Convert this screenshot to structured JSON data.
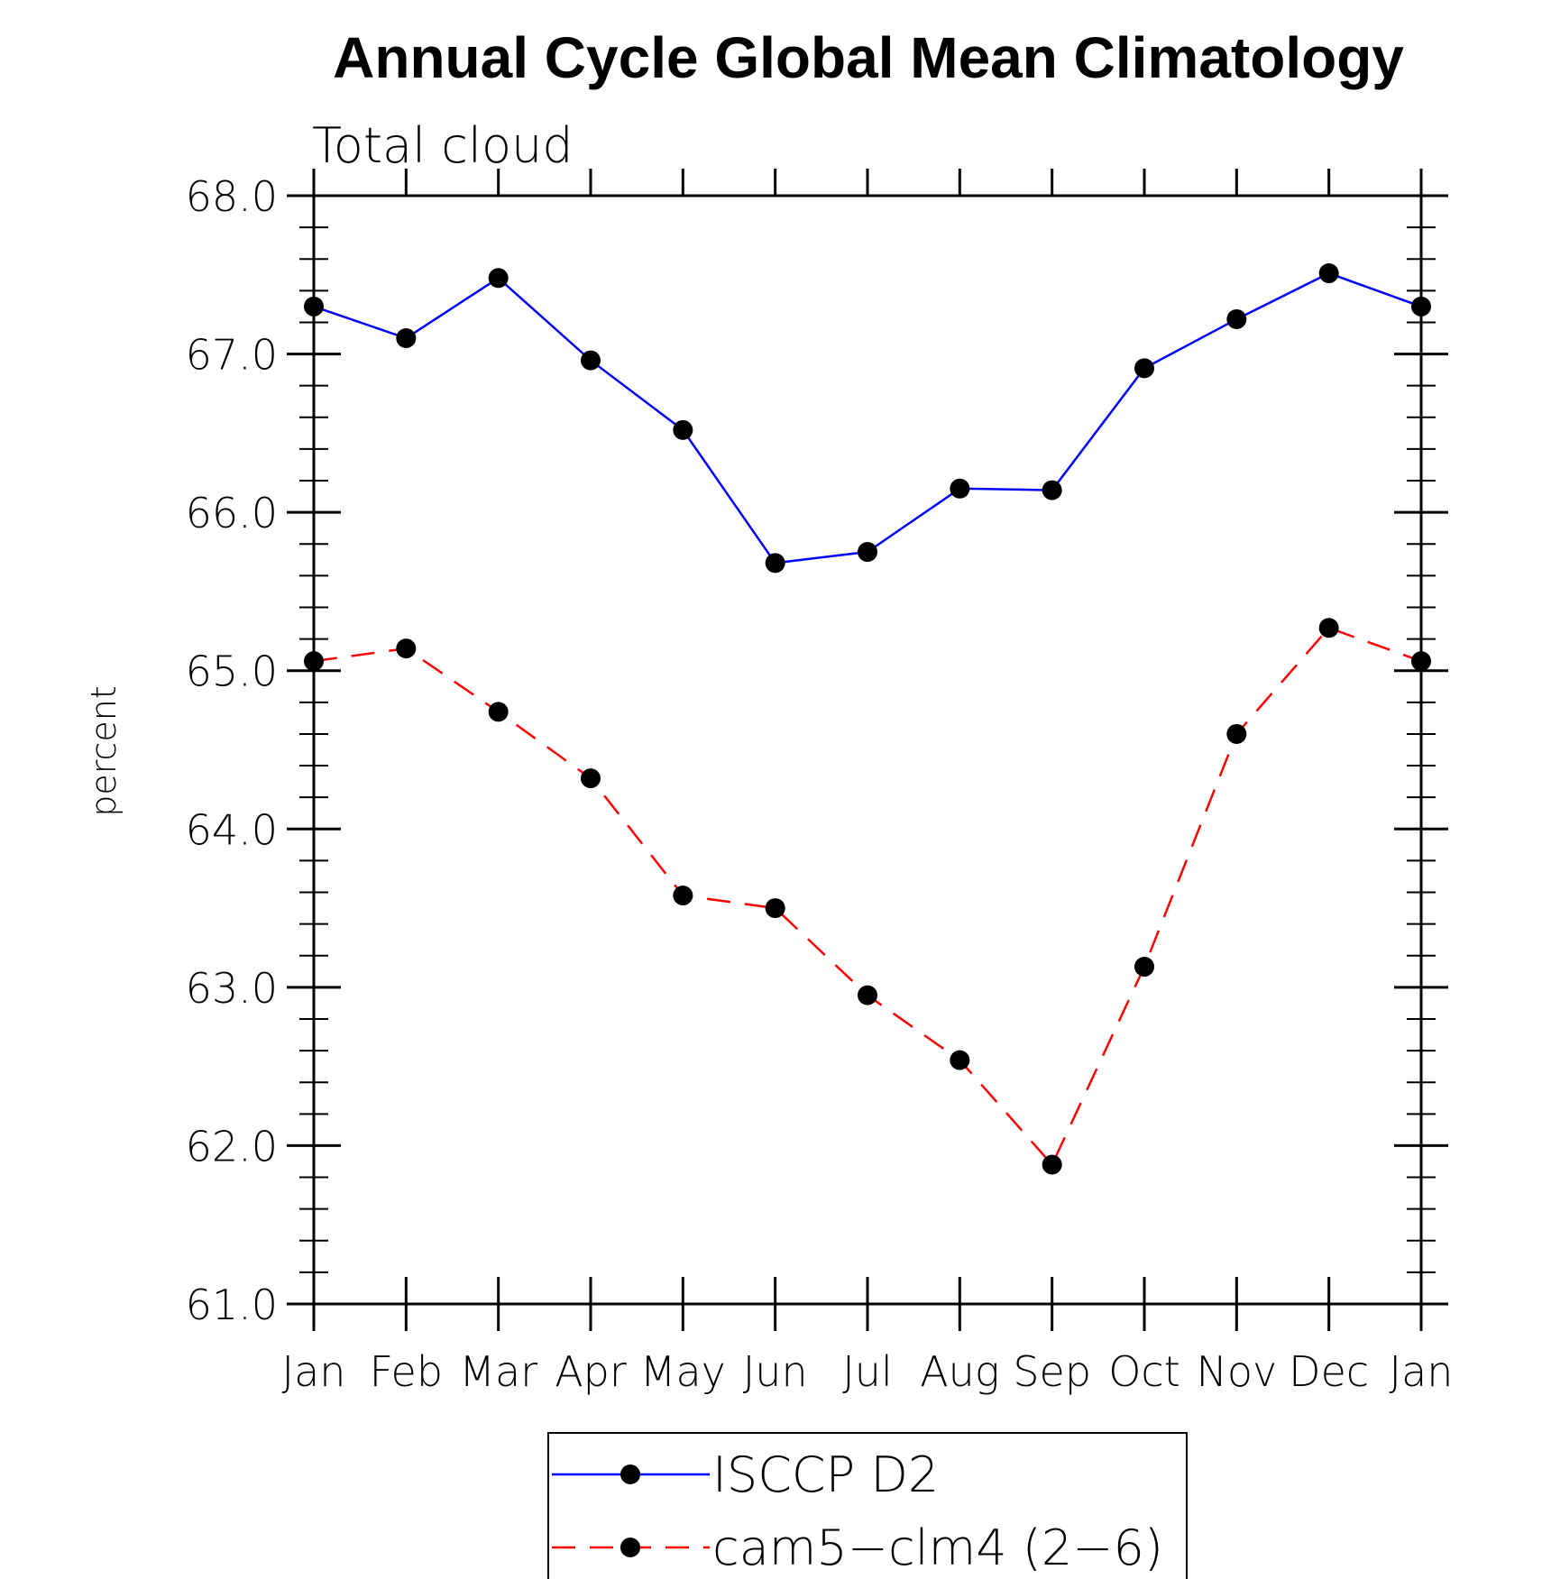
{
  "chart_data": {
    "type": "line",
    "title": "Annual Cycle Global Mean Climatology",
    "subtitle": "Total cloud",
    "xlabel": "",
    "ylabel": "percent",
    "categories": [
      "Jan",
      "Feb",
      "Mar",
      "Apr",
      "May",
      "Jun",
      "Jul",
      "Aug",
      "Sep",
      "Oct",
      "Nov",
      "Dec",
      "Jan"
    ],
    "ylim": [
      61.0,
      68.0
    ],
    "yticks": [
      "61.0",
      "62.0",
      "63.0",
      "64.0",
      "65.0",
      "66.0",
      "67.0",
      "68.0"
    ],
    "grid": false,
    "legend_position": "bottom",
    "series": [
      {
        "name": "ISCCP D2",
        "color": "#0000ff",
        "line_style": "solid",
        "marker": "filled-circle",
        "values": [
          67.3,
          67.1,
          67.48,
          66.96,
          66.52,
          65.68,
          65.75,
          66.15,
          66.14,
          66.91,
          67.22,
          67.51,
          67.3
        ]
      },
      {
        "name": "cam5−clm4 (2−6)",
        "color": "#ff0000",
        "line_style": "dashed",
        "marker": "filled-circle",
        "values": [
          65.06,
          65.14,
          64.74,
          64.32,
          63.58,
          63.5,
          62.95,
          62.54,
          61.88,
          63.13,
          64.6,
          65.27,
          65.06
        ]
      }
    ]
  }
}
